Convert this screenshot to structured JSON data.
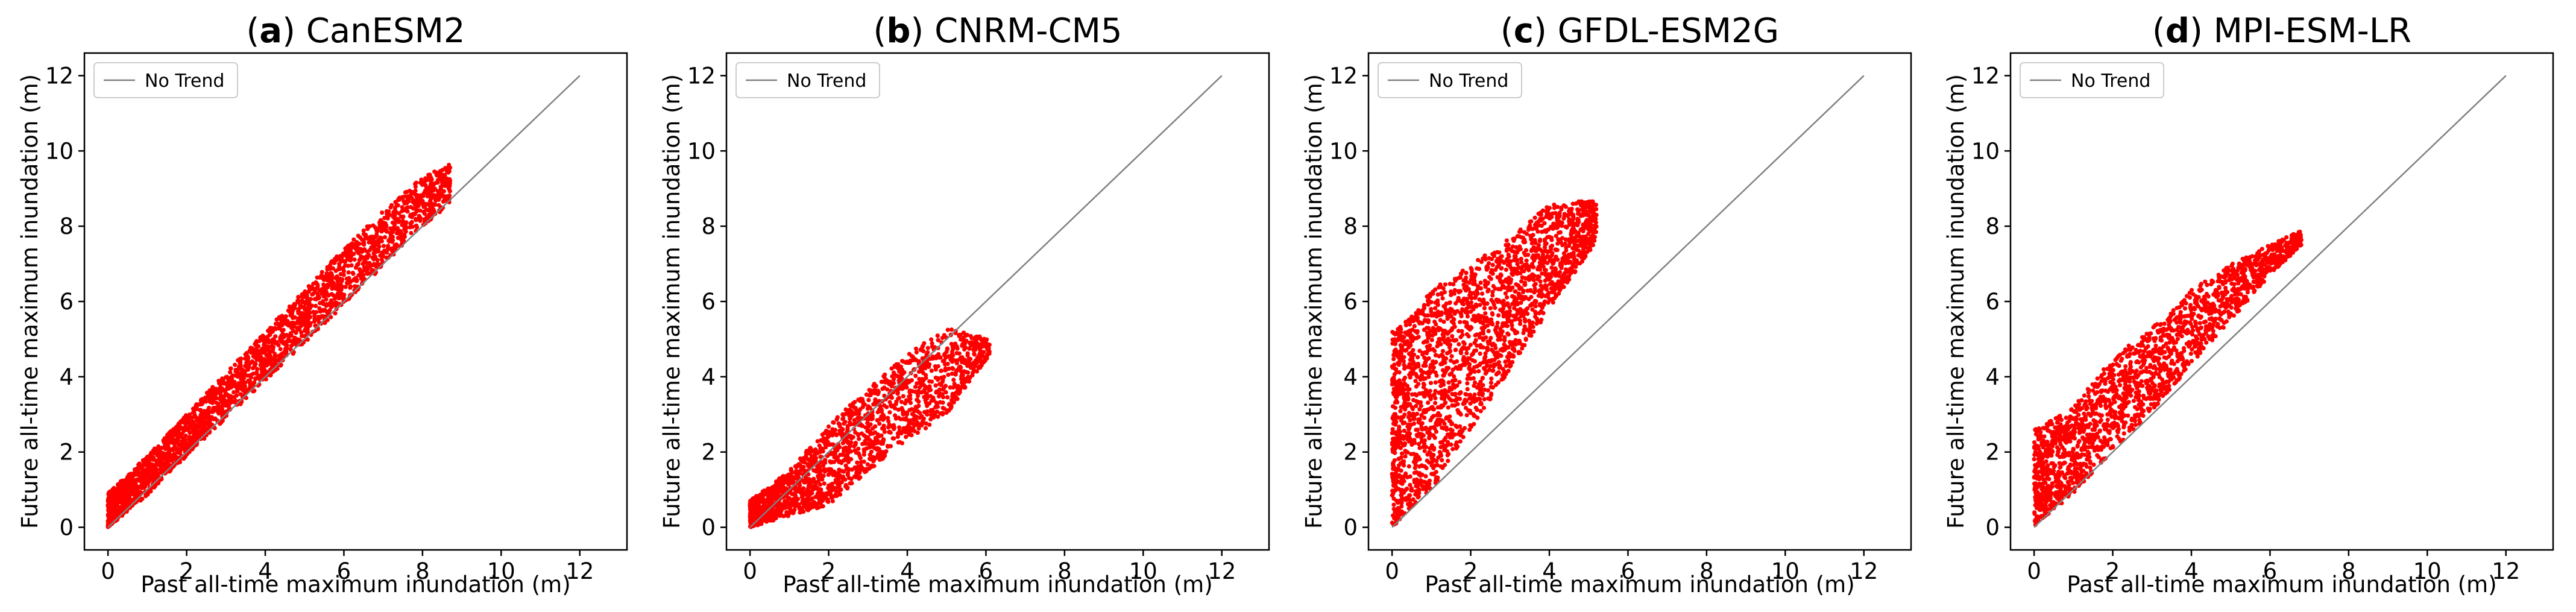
{
  "figure": {
    "colors": {
      "points": "#ff0000",
      "no_trend_line": "#808080",
      "axes": "#000000",
      "legend_border": "#cccccc",
      "background": "#ffffff"
    }
  },
  "chart_data": [
    {
      "type": "scatter",
      "panel_letter": "a",
      "model": "CanESM2",
      "xlabel": "Past all-time maximum inundation (m)",
      "ylabel": "Future all-time maximum inundation (m)",
      "xlim": [
        -0.6,
        13.2
      ],
      "ylim": [
        -0.6,
        12.6
      ],
      "xticks": [
        0,
        2,
        4,
        6,
        8,
        10,
        12
      ],
      "yticks": [
        0,
        2,
        4,
        6,
        8,
        10,
        12
      ],
      "legend": {
        "label": "No Trend",
        "location": "upper left"
      },
      "reference_line": {
        "name": "No Trend",
        "x": [
          0,
          12
        ],
        "y": [
          0,
          12
        ]
      },
      "series": [
        {
          "name": "points",
          "description": "Dense red point cloud lying slightly above the 1:1 line",
          "band": [
            {
              "x": 0.0,
              "low": 0.0,
              "high": 0.9
            },
            {
              "x": 1.0,
              "low": 0.85,
              "high": 1.9
            },
            {
              "x": 2.0,
              "low": 1.9,
              "high": 3.0
            },
            {
              "x": 3.0,
              "low": 2.9,
              "high": 4.1
            },
            {
              "x": 4.0,
              "low": 3.9,
              "high": 5.2
            },
            {
              "x": 5.0,
              "low": 4.9,
              "high": 6.3
            },
            {
              "x": 6.0,
              "low": 5.9,
              "high": 7.4
            },
            {
              "x": 7.0,
              "low": 6.95,
              "high": 8.4
            },
            {
              "x": 8.0,
              "low": 8.0,
              "high": 9.3
            },
            {
              "x": 8.7,
              "low": 8.6,
              "high": 9.65
            }
          ],
          "count": 2600,
          "seed": 11
        }
      ]
    },
    {
      "type": "scatter",
      "panel_letter": "b",
      "model": "CNRM-CM5",
      "xlabel": "Past all-time maximum inundation (m)",
      "ylabel": "Future all-time maximum inundation (m)",
      "xlim": [
        -0.6,
        13.2
      ],
      "ylim": [
        -0.6,
        12.6
      ],
      "xticks": [
        0,
        2,
        4,
        6,
        8,
        10,
        12
      ],
      "yticks": [
        0,
        2,
        4,
        6,
        8,
        10,
        12
      ],
      "legend": {
        "label": "No Trend",
        "location": "upper left"
      },
      "reference_line": {
        "name": "No Trend",
        "x": [
          0,
          12
        ],
        "y": [
          0,
          12
        ]
      },
      "series": [
        {
          "name": "points",
          "description": "Red points mostly just below the 1:1 line with a tail at lower values",
          "band": [
            {
              "x": 0.0,
              "low": 0.0,
              "high": 0.7
            },
            {
              "x": 1.0,
              "low": 0.3,
              "high": 1.5
            },
            {
              "x": 2.0,
              "low": 0.6,
              "high": 2.7
            },
            {
              "x": 3.0,
              "low": 1.5,
              "high": 3.7
            },
            {
              "x": 4.0,
              "low": 2.3,
              "high": 4.6
            },
            {
              "x": 5.0,
              "low": 3.0,
              "high": 5.3
            },
            {
              "x": 6.1,
              "low": 4.6,
              "high": 5.0
            }
          ],
          "count": 1900,
          "seed": 23
        }
      ]
    },
    {
      "type": "scatter",
      "panel_letter": "c",
      "model": "GFDL-ESM2G",
      "xlabel": "Past all-time maximum inundation (m)",
      "ylabel": "Future all-time maximum inundation (m)",
      "xlim": [
        -0.6,
        13.2
      ],
      "ylim": [
        -0.6,
        12.6
      ],
      "xticks": [
        0,
        2,
        4,
        6,
        8,
        10,
        12
      ],
      "yticks": [
        0,
        2,
        4,
        6,
        8,
        10,
        12
      ],
      "legend": {
        "label": "No Trend",
        "location": "upper left"
      },
      "reference_line": {
        "name": "No Trend",
        "x": [
          0,
          12
        ],
        "y": [
          0,
          12
        ]
      },
      "series": [
        {
          "name": "points",
          "description": "Red points well above the 1:1 line with large spread near zero",
          "band": [
            {
              "x": 0.0,
              "low": 0.0,
              "high": 5.2
            },
            {
              "x": 0.5,
              "low": 0.5,
              "high": 5.6
            },
            {
              "x": 1.0,
              "low": 1.0,
              "high": 6.3
            },
            {
              "x": 2.0,
              "low": 2.6,
              "high": 7.0
            },
            {
              "x": 3.0,
              "low": 4.2,
              "high": 7.7
            },
            {
              "x": 4.0,
              "low": 5.8,
              "high": 8.6
            },
            {
              "x": 5.2,
              "low": 7.6,
              "high": 8.7
            }
          ],
          "count": 2400,
          "seed": 37
        }
      ]
    },
    {
      "type": "scatter",
      "panel_letter": "d",
      "model": "MPI-ESM-LR",
      "xlabel": "Past all-time maximum inundation (m)",
      "ylabel": "Future all-time maximum inundation (m)",
      "xlim": [
        -0.6,
        13.2
      ],
      "ylim": [
        -0.6,
        12.6
      ],
      "xticks": [
        0,
        2,
        4,
        6,
        8,
        10,
        12
      ],
      "yticks": [
        0,
        2,
        4,
        6,
        8,
        10,
        12
      ],
      "legend": {
        "label": "No Trend",
        "location": "upper left"
      },
      "reference_line": {
        "name": "No Trend",
        "x": [
          0,
          12
        ],
        "y": [
          0,
          12
        ]
      },
      "series": [
        {
          "name": "points",
          "description": "Red points above the 1:1 line, converging toward ~7.8 m",
          "band": [
            {
              "x": 0.0,
              "low": 0.0,
              "high": 2.6
            },
            {
              "x": 1.0,
              "low": 0.9,
              "high": 3.2
            },
            {
              "x": 2.0,
              "low": 2.0,
              "high": 4.5
            },
            {
              "x": 3.0,
              "low": 3.1,
              "high": 5.3
            },
            {
              "x": 4.0,
              "low": 4.3,
              "high": 6.3
            },
            {
              "x": 5.0,
              "low": 5.5,
              "high": 7.0
            },
            {
              "x": 6.0,
              "low": 6.7,
              "high": 7.5
            },
            {
              "x": 6.8,
              "low": 7.5,
              "high": 7.9
            }
          ],
          "count": 2000,
          "seed": 53
        }
      ]
    }
  ]
}
